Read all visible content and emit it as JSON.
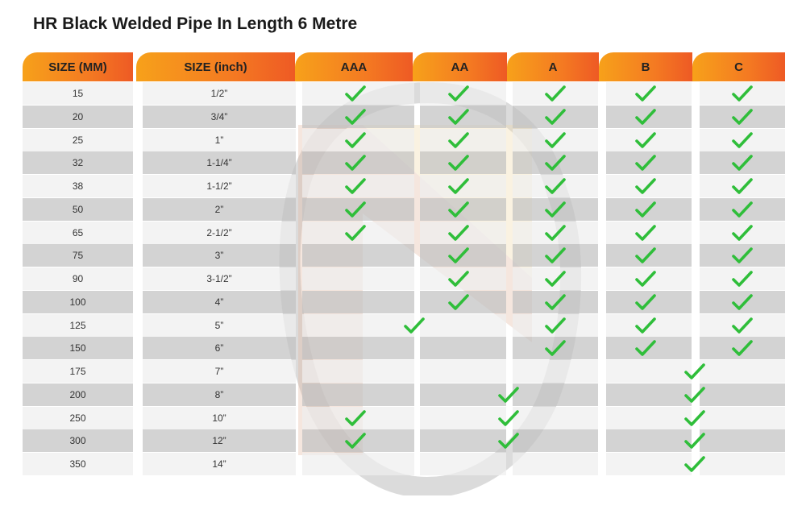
{
  "title": "HR Black Welded Pipe In Length 6 Metre",
  "colors": {
    "header_start": "#f7a11a",
    "header_end": "#ee5a24",
    "row_light": "#eeeeee",
    "row_dark": "#c2c2c2",
    "check": "#2fbe3a"
  },
  "headers": [
    "SIZE (MM)",
    "SIZE (inch)",
    "AAA",
    "AA",
    "A",
    "B",
    "C"
  ],
  "rows": [
    {
      "mm": "15",
      "inch": "1/2”",
      "grades": [
        "AAA",
        "AA",
        "A",
        "B",
        "C"
      ]
    },
    {
      "mm": "20",
      "inch": "3/4”",
      "grades": [
        "AAA",
        "AA",
        "A",
        "B",
        "C"
      ]
    },
    {
      "mm": "25",
      "inch": "1”",
      "grades": [
        "AAA",
        "AA",
        "A",
        "B",
        "C"
      ]
    },
    {
      "mm": "32",
      "inch": "1-1/4”",
      "grades": [
        "AAA",
        "AA",
        "A",
        "B",
        "C"
      ]
    },
    {
      "mm": "38",
      "inch": "1-1/2”",
      "grades": [
        "AAA",
        "AA",
        "A",
        "B",
        "C"
      ]
    },
    {
      "mm": "50",
      "inch": "2”",
      "grades": [
        "AAA",
        "AA",
        "A",
        "B",
        "C"
      ]
    },
    {
      "mm": "65",
      "inch": "2-1/2”",
      "grades": [
        "AAA",
        "AA",
        "A",
        "B",
        "C"
      ]
    },
    {
      "mm": "75",
      "inch": "3”",
      "grades": [
        "AA",
        "A",
        "B",
        "C"
      ]
    },
    {
      "mm": "90",
      "inch": "3-1/2”",
      "grades": [
        "AA",
        "A",
        "B",
        "C"
      ]
    },
    {
      "mm": "100",
      "inch": "4”",
      "grades": [
        "AA",
        "A",
        "B",
        "C"
      ]
    },
    {
      "mm": "125",
      "inch": "5”",
      "grades": [
        "AAA/AA",
        "A",
        "B",
        "C"
      ]
    },
    {
      "mm": "150",
      "inch": "6”",
      "grades": [
        "A",
        "B",
        "C"
      ]
    },
    {
      "mm": "175",
      "inch": "7”",
      "grades": [
        "B/C"
      ]
    },
    {
      "mm": "200",
      "inch": "8”",
      "grades": [
        "AA/A",
        "B/C"
      ]
    },
    {
      "mm": "250",
      "inch": "10”",
      "grades": [
        "AAA",
        "AA/A",
        "B/C"
      ]
    },
    {
      "mm": "300",
      "inch": "12”",
      "grades": [
        "AAA",
        "AA/A",
        "B/C"
      ]
    },
    {
      "mm": "350",
      "inch": "14”",
      "grades": [
        "B/C"
      ]
    }
  ]
}
